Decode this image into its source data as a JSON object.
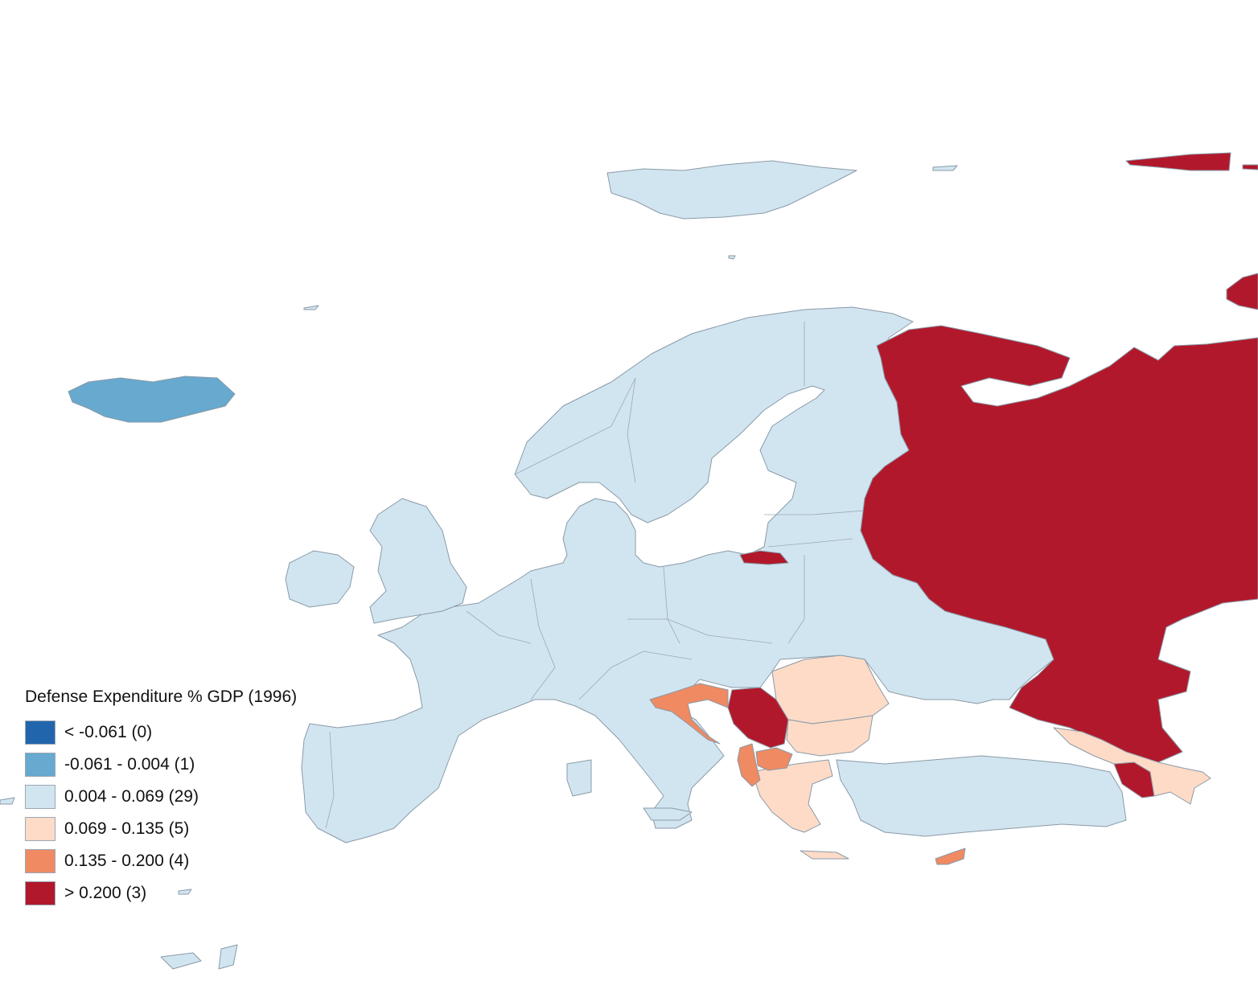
{
  "legend": {
    "title": "Defense Expenditure % GDP (1996)",
    "classes": [
      {
        "label": "< -0.061 (0)",
        "color": "#2166ac"
      },
      {
        "label": "-0.061 - 0.004 (1)",
        "color": "#67a9cf"
      },
      {
        "label": "0.004 - 0.069 (29)",
        "color": "#d1e5f0"
      },
      {
        "label": "0.069 - 0.135 (5)",
        "color": "#fddbc7"
      },
      {
        "label": "0.135 - 0.200 (4)",
        "color": "#ef8a62"
      },
      {
        "label": "> 0.200 (3)",
        "color": "#b2182b"
      }
    ]
  },
  "regions": [
    {
      "name": "iceland",
      "class_index": 1
    },
    {
      "name": "russia",
      "class_index": 5
    },
    {
      "name": "kaliningrad",
      "class_index": 5
    },
    {
      "name": "serbia",
      "class_index": 5
    },
    {
      "name": "armenia",
      "class_index": 5
    },
    {
      "name": "romania",
      "class_index": 3
    },
    {
      "name": "bulgaria",
      "class_index": 3
    },
    {
      "name": "greece",
      "class_index": 3
    },
    {
      "name": "georgia-azerbaijan",
      "class_index": 3
    },
    {
      "name": "croatia",
      "class_index": 4
    },
    {
      "name": "albania",
      "class_index": 4
    },
    {
      "name": "macedonia",
      "class_index": 4
    },
    {
      "name": "cyprus",
      "class_index": 4
    },
    {
      "name": "rest-of-europe",
      "class_index": 2
    }
  ]
}
